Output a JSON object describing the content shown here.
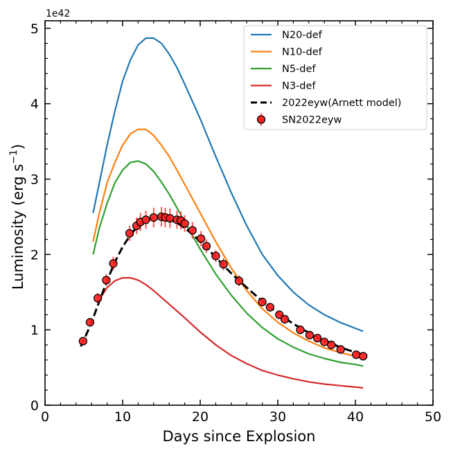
{
  "chart_data": {
    "type": "line",
    "title": "",
    "xlabel": "Days since Explosion",
    "ylabel": "Luminosity (erg s⁻¹)",
    "ylabel_main": "Luminosity (erg s",
    "ylabel_sup": "−1",
    "ylabel_close": ")",
    "y_offset_text": "1e42",
    "xlim": [
      0,
      50
    ],
    "ylim": [
      0,
      5.1
    ],
    "xticks": [
      0,
      10,
      20,
      30,
      40,
      50
    ],
    "xtick_labels": [
      "0",
      "10",
      "20",
      "30",
      "40",
      "50"
    ],
    "yticks": [
      0,
      1,
      2,
      3,
      4,
      5
    ],
    "ytick_labels": [
      "0",
      "1",
      "2",
      "3",
      "4",
      "5"
    ],
    "legend_position": "top-right",
    "series": [
      {
        "name": "N20-def",
        "kind": "line",
        "color": "#1f77b4",
        "x": [
          6.2,
          7,
          8,
          9,
          10,
          11,
          12,
          13,
          14,
          15,
          16,
          17,
          18,
          20,
          22,
          24,
          26,
          28,
          30,
          32,
          34,
          36,
          38,
          40,
          41
        ],
        "y": [
          2.55,
          2.95,
          3.45,
          3.9,
          4.3,
          4.58,
          4.78,
          4.87,
          4.87,
          4.8,
          4.66,
          4.48,
          4.26,
          3.8,
          3.3,
          2.82,
          2.38,
          2.0,
          1.72,
          1.5,
          1.33,
          1.2,
          1.1,
          1.02,
          0.98
        ]
      },
      {
        "name": "N10-def",
        "kind": "line",
        "color": "#ff7f0e",
        "x": [
          6.2,
          7,
          8,
          9,
          10,
          11,
          12,
          13,
          14,
          15,
          16,
          17,
          18,
          20,
          22,
          24,
          26,
          28,
          30,
          32,
          34,
          36,
          38,
          40,
          41
        ],
        "y": [
          2.17,
          2.55,
          2.95,
          3.22,
          3.45,
          3.6,
          3.66,
          3.66,
          3.58,
          3.45,
          3.3,
          3.12,
          2.93,
          2.55,
          2.17,
          1.82,
          1.52,
          1.28,
          1.1,
          0.96,
          0.85,
          0.76,
          0.7,
          0.65,
          0.62
        ]
      },
      {
        "name": "N5-def",
        "kind": "line",
        "color": "#2ca02c",
        "x": [
          6.2,
          7,
          8,
          9,
          10,
          11,
          12,
          13,
          14,
          15,
          16,
          17,
          18,
          20,
          22,
          24,
          26,
          28,
          30,
          32,
          34,
          36,
          38,
          40,
          41
        ],
        "y": [
          2.0,
          2.35,
          2.68,
          2.95,
          3.12,
          3.22,
          3.24,
          3.2,
          3.1,
          2.96,
          2.8,
          2.62,
          2.43,
          2.07,
          1.74,
          1.46,
          1.22,
          1.03,
          0.88,
          0.77,
          0.68,
          0.62,
          0.57,
          0.54,
          0.52
        ]
      },
      {
        "name": "N3-def",
        "kind": "line",
        "color": "#d62728",
        "x": [
          7,
          8,
          9,
          10,
          11,
          12,
          13,
          14,
          15,
          16,
          17,
          18,
          20,
          22,
          24,
          26,
          28,
          30,
          32,
          34,
          36,
          38,
          40,
          41
        ],
        "y": [
          1.4,
          1.56,
          1.65,
          1.69,
          1.69,
          1.66,
          1.6,
          1.52,
          1.43,
          1.34,
          1.25,
          1.16,
          0.97,
          0.8,
          0.66,
          0.55,
          0.46,
          0.4,
          0.35,
          0.31,
          0.28,
          0.26,
          0.24,
          0.23
        ]
      },
      {
        "name": "2022eyw(Arnett model)",
        "kind": "dashed",
        "color": "#000000",
        "x": [
          4.6,
          5,
          6,
          7,
          8,
          9,
          10,
          11,
          12,
          13,
          14,
          15,
          16,
          17,
          18,
          19,
          20,
          21,
          22,
          24,
          26,
          28,
          30,
          32,
          34,
          36,
          38,
          40,
          41.5
        ],
        "y": [
          0.78,
          0.86,
          1.1,
          1.38,
          1.65,
          1.9,
          2.1,
          2.26,
          2.38,
          2.45,
          2.49,
          2.49,
          2.47,
          2.42,
          2.35,
          2.27,
          2.17,
          2.07,
          1.96,
          1.75,
          1.56,
          1.38,
          1.22,
          1.08,
          0.96,
          0.86,
          0.77,
          0.7,
          0.65
        ]
      },
      {
        "name": "SN2022eyw",
        "kind": "errorbar",
        "color": "#ff0000",
        "x": [
          4.9,
          5.8,
          6.8,
          7.9,
          8.8,
          10.9,
          11.8,
          12.3,
          13,
          14,
          15,
          15.5,
          16.1,
          17,
          17.5,
          18,
          19,
          20.1,
          20.8,
          22,
          23,
          25,
          28,
          29,
          30.2,
          30.9,
          32.9,
          34.1,
          35.1,
          36,
          36.9,
          38.1,
          40.1,
          41
        ],
        "y": [
          0.85,
          1.1,
          1.42,
          1.66,
          1.88,
          2.28,
          2.38,
          2.43,
          2.46,
          2.49,
          2.5,
          2.49,
          2.48,
          2.46,
          2.45,
          2.41,
          2.32,
          2.21,
          2.11,
          1.98,
          1.87,
          1.65,
          1.37,
          1.3,
          1.2,
          1.14,
          1.0,
          0.93,
          0.89,
          0.84,
          0.8,
          0.74,
          0.67,
          0.65
        ],
        "err": [
          0.05,
          0.05,
          0.07,
          0.08,
          0.09,
          0.1,
          0.11,
          0.12,
          0.12,
          0.13,
          0.13,
          0.13,
          0.13,
          0.12,
          0.12,
          0.11,
          0.11,
          0.1,
          0.09,
          0.08,
          0.08,
          0.07,
          0.06,
          0.05,
          0.05,
          0.05,
          0.04,
          0.04,
          0.04,
          0.04,
          0.03,
          0.03,
          0.03,
          0.03
        ]
      }
    ]
  }
}
